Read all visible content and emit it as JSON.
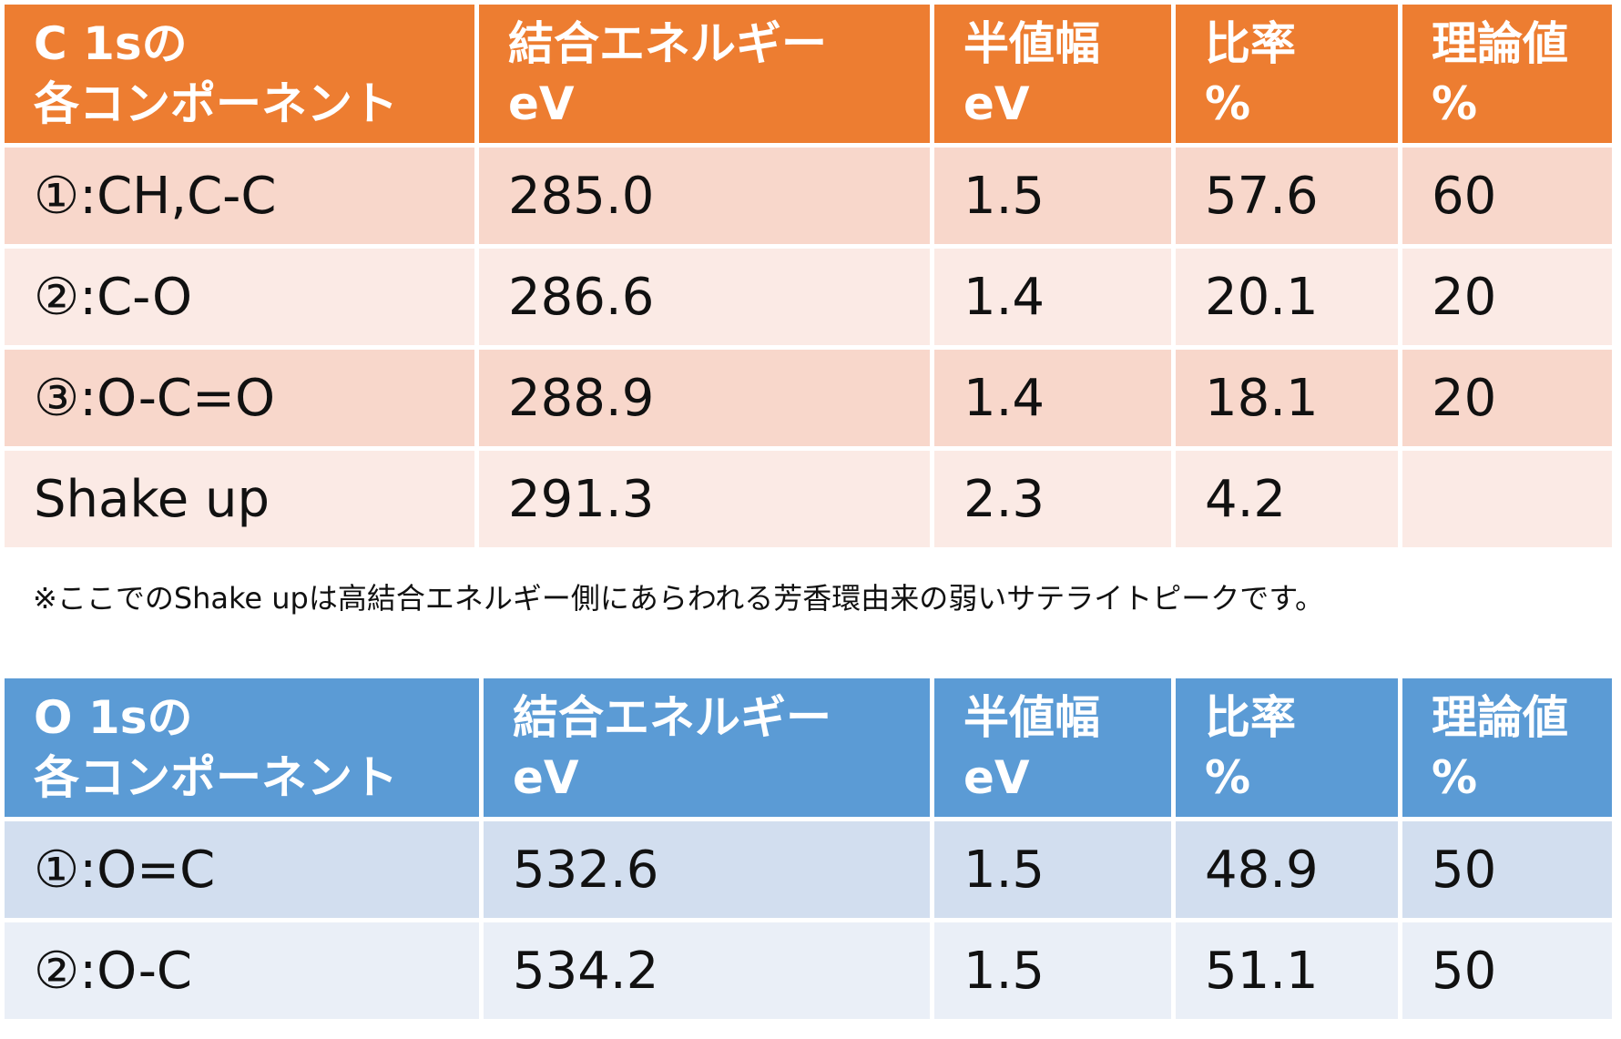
{
  "c1s_table": {
    "headers": [
      {
        "line1": "C 1sの",
        "line2": "各コンポーネント"
      },
      {
        "line1": "結合エネルギー",
        "line2": "eV"
      },
      {
        "line1": "半値幅",
        "line2": "eV"
      },
      {
        "line1": "比率",
        "line2": "%"
      },
      {
        "line1": "理論値",
        "line2": "%"
      }
    ],
    "rows": [
      {
        "component": "①:CH,C-C",
        "binding_energy": "285.0",
        "fwhm": "1.5",
        "ratio": "57.6",
        "theoretical": "60"
      },
      {
        "component": "②:C-O",
        "binding_energy": "286.6",
        "fwhm": "1.4",
        "ratio": "20.1",
        "theoretical": "20"
      },
      {
        "component": "③:O-C=O",
        "binding_energy": "288.9",
        "fwhm": "1.4",
        "ratio": "18.1",
        "theoretical": "20"
      },
      {
        "component": "Shake up",
        "binding_energy": "291.3",
        "fwhm": "2.3",
        "ratio": "4.2",
        "theoretical": ""
      }
    ],
    "header_color": "#ED7D31",
    "row_colors": [
      "#F8D7CB",
      "#FBEAE5"
    ]
  },
  "note": "※ここでのShake upは高結合エネルギー側にあらわれる芳香環由来の弱いサテライトピークです。",
  "o1s_table": {
    "headers": [
      {
        "line1": "O 1sの",
        "line2": "各コンポーネント"
      },
      {
        "line1": "結合エネルギー",
        "line2": "eV"
      },
      {
        "line1": "半値幅",
        "line2": "eV"
      },
      {
        "line1": "比率",
        "line2": "%"
      },
      {
        "line1": "理論値",
        "line2": "%"
      }
    ],
    "rows": [
      {
        "component": "①:O=C",
        "binding_energy": "532.6",
        "fwhm": "1.5",
        "ratio": "48.9",
        "theoretical": "50"
      },
      {
        "component": "②:O-C",
        "binding_energy": "534.2",
        "fwhm": "1.5",
        "ratio": "51.1",
        "theoretical": "50"
      }
    ],
    "header_color": "#5B9BD5",
    "row_colors": [
      "#D2DEEF",
      "#EAEFF7"
    ]
  }
}
